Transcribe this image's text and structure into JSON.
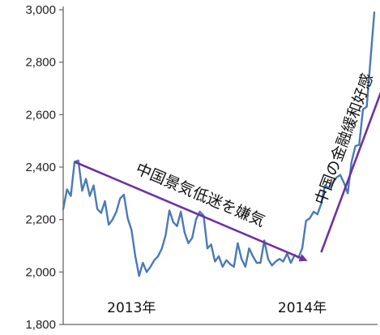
{
  "chart_data": {
    "type": "line",
    "title": "",
    "xlabel": "",
    "ylabel": "",
    "ylim": [
      1800,
      3000
    ],
    "yticks": [
      1800,
      2000,
      2200,
      2400,
      2600,
      2800,
      3000
    ],
    "ytick_labels": [
      "1,800",
      "2,000",
      "2,200",
      "2,400",
      "2,600",
      "2,800",
      "3,000"
    ],
    "grid": false,
    "year_labels": [
      "2013年",
      "2014年"
    ],
    "colors": {
      "line": "#4a7ab5",
      "arrow": "#7030a0",
      "axis": "#666666"
    },
    "series": [
      {
        "values": [
          2240,
          2315,
          2290,
          2420,
          2425,
          2310,
          2355,
          2290,
          2330,
          2240,
          2225,
          2270,
          2180,
          2200,
          2230,
          2280,
          2295,
          2205,
          2160,
          2060,
          1985,
          2035,
          2000,
          2020,
          2045,
          2060,
          2090,
          2140,
          2235,
          2190,
          2175,
          2230,
          2150,
          2110,
          2130,
          2200,
          2230,
          2215,
          2090,
          2105,
          2040,
          2060,
          2020,
          2045,
          2030,
          2020,
          2110,
          2050,
          2020,
          2090,
          2060,
          2035,
          2035,
          2120,
          2050,
          2025,
          2040,
          2050,
          2040,
          2070,
          2035,
          2065,
          2055,
          2090,
          2195,
          2205,
          2230,
          2220,
          2260,
          2330,
          2320,
          2340,
          2360,
          2370,
          2340,
          2300,
          2420,
          2480,
          2485,
          2620,
          2630,
          2810,
          2990
        ]
      }
    ],
    "annotations": [
      {
        "text": "中国景気低迷を嫌気",
        "from": [
          3,
          2420
        ],
        "to": [
          64,
          2045
        ]
      },
      {
        "text": "中国の金融緩和好感",
        "from": [
          68,
          2075
        ],
        "to": [
          89,
          2890
        ]
      }
    ]
  }
}
